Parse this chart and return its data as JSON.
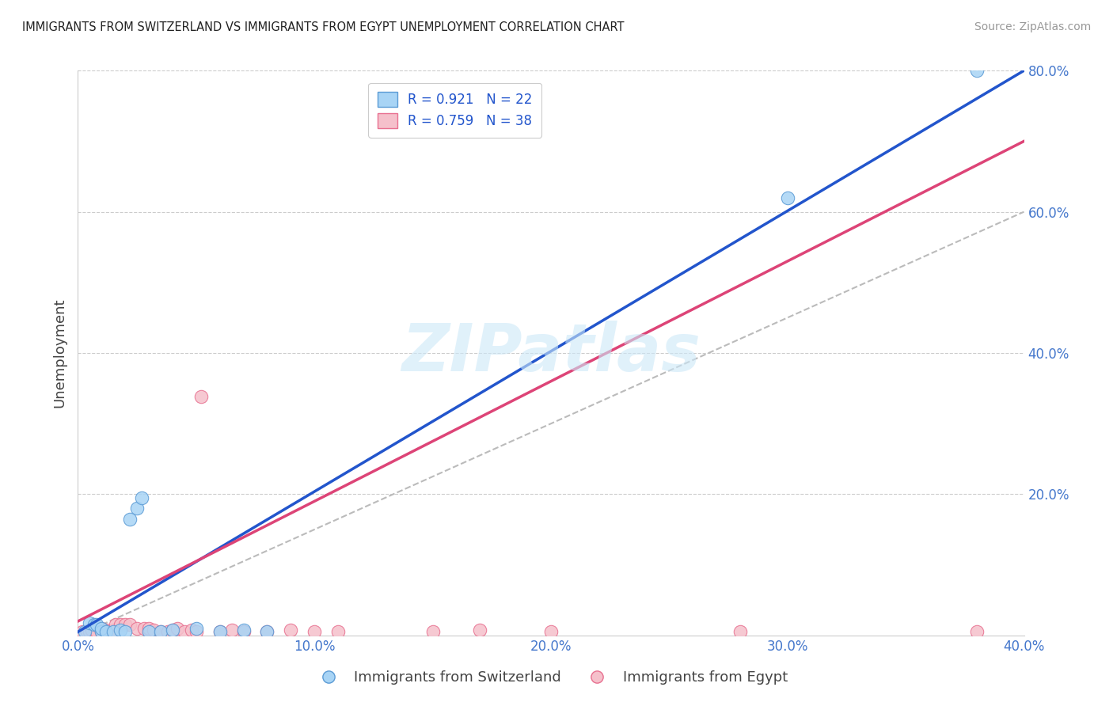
{
  "title": "IMMIGRANTS FROM SWITZERLAND VS IMMIGRANTS FROM EGYPT UNEMPLOYMENT CORRELATION CHART",
  "source": "Source: ZipAtlas.com",
  "ylabel": "Unemployment",
  "xlim": [
    0.0,
    0.4
  ],
  "ylim": [
    0.0,
    0.8
  ],
  "xticks": [
    0.0,
    0.1,
    0.2,
    0.3,
    0.4
  ],
  "yticks": [
    0.2,
    0.4,
    0.6,
    0.8
  ],
  "grid_color": "#cccccc",
  "background_color": "#ffffff",
  "watermark_text": "ZIPatlas",
  "swiss_color": "#a8d4f5",
  "swiss_edge_color": "#5b9bd5",
  "swiss_line_color": "#2255cc",
  "swiss_R": 0.921,
  "swiss_N": 22,
  "swiss_scatter": [
    [
      0.003,
      0.005
    ],
    [
      0.005,
      0.018
    ],
    [
      0.007,
      0.016
    ],
    [
      0.008,
      0.015
    ],
    [
      0.01,
      0.005
    ],
    [
      0.01,
      0.01
    ],
    [
      0.012,
      0.005
    ],
    [
      0.015,
      0.005
    ],
    [
      0.018,
      0.008
    ],
    [
      0.02,
      0.005
    ],
    [
      0.022,
      0.165
    ],
    [
      0.025,
      0.18
    ],
    [
      0.027,
      0.195
    ],
    [
      0.03,
      0.005
    ],
    [
      0.035,
      0.005
    ],
    [
      0.04,
      0.008
    ],
    [
      0.05,
      0.01
    ],
    [
      0.06,
      0.005
    ],
    [
      0.07,
      0.008
    ],
    [
      0.08,
      0.005
    ],
    [
      0.3,
      0.62
    ],
    [
      0.38,
      0.8
    ]
  ],
  "swiss_line_x": [
    0.0,
    0.4
  ],
  "swiss_line_y": [
    0.005,
    0.8
  ],
  "egypt_color": "#f5c0cb",
  "egypt_edge_color": "#e87090",
  "egypt_line_color": "#dd4477",
  "egypt_R": 0.759,
  "egypt_N": 38,
  "egypt_scatter": [
    [
      0.002,
      0.005
    ],
    [
      0.004,
      0.005
    ],
    [
      0.005,
      0.005
    ],
    [
      0.006,
      0.008
    ],
    [
      0.008,
      0.005
    ],
    [
      0.01,
      0.005
    ],
    [
      0.01,
      0.01
    ],
    [
      0.012,
      0.008
    ],
    [
      0.014,
      0.005
    ],
    [
      0.015,
      0.008
    ],
    [
      0.016,
      0.016
    ],
    [
      0.018,
      0.015
    ],
    [
      0.02,
      0.016
    ],
    [
      0.022,
      0.015
    ],
    [
      0.025,
      0.01
    ],
    [
      0.028,
      0.01
    ],
    [
      0.03,
      0.01
    ],
    [
      0.032,
      0.008
    ],
    [
      0.035,
      0.005
    ],
    [
      0.038,
      0.005
    ],
    [
      0.04,
      0.008
    ],
    [
      0.042,
      0.01
    ],
    [
      0.045,
      0.005
    ],
    [
      0.048,
      0.008
    ],
    [
      0.05,
      0.005
    ],
    [
      0.052,
      0.338
    ],
    [
      0.06,
      0.005
    ],
    [
      0.065,
      0.008
    ],
    [
      0.07,
      0.005
    ],
    [
      0.08,
      0.005
    ],
    [
      0.09,
      0.008
    ],
    [
      0.1,
      0.005
    ],
    [
      0.11,
      0.005
    ],
    [
      0.15,
      0.005
    ],
    [
      0.17,
      0.008
    ],
    [
      0.2,
      0.005
    ],
    [
      0.28,
      0.005
    ],
    [
      0.38,
      0.005
    ]
  ],
  "egypt_line_x": [
    0.0,
    0.4
  ],
  "egypt_line_y": [
    0.02,
    0.7
  ],
  "ref_line_x": [
    0.0,
    0.4
  ],
  "ref_line_y": [
    0.0,
    0.6
  ],
  "legend_swiss": "R = 0.921   N = 22",
  "legend_egypt": "R = 0.759   N = 38",
  "bottom_legend_swiss": "Immigrants from Switzerland",
  "bottom_legend_egypt": "Immigrants from Egypt"
}
